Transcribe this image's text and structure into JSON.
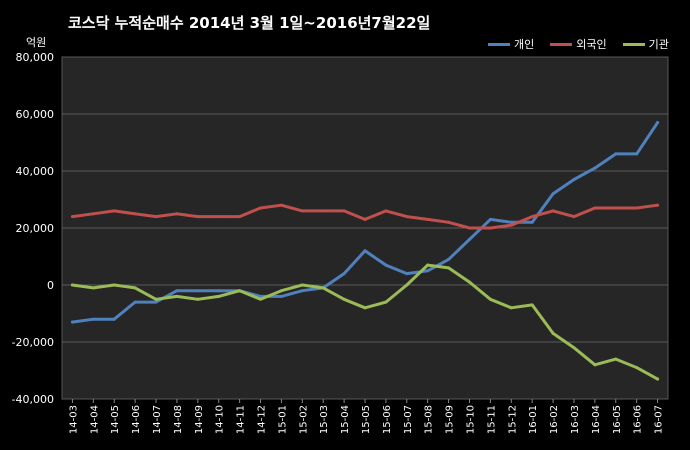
{
  "chart_data": {
    "type": "line",
    "title": "코스닥  누적순매수 2014년 3월 1일~2016년7월22일",
    "ylabel": "억원",
    "ylim": [
      -40000,
      80000
    ],
    "yticks": [
      "80,000",
      "60,000",
      "40,000",
      "20,000",
      "0",
      "-20,000",
      "-40,000"
    ],
    "ytick_values": [
      80000,
      60000,
      40000,
      20000,
      0,
      -20000,
      -40000
    ],
    "categories": [
      "14-03",
      "14-04",
      "14-05",
      "14-06",
      "14-07",
      "14-08",
      "14-09",
      "14-10",
      "14-11",
      "14-12",
      "15-01",
      "15-02",
      "15-03",
      "15-04",
      "15-05",
      "15-06",
      "15-07",
      "15-08",
      "15-09",
      "15-10",
      "15-11",
      "15-12",
      "16-01",
      "16-02",
      "16-03",
      "16-04",
      "16-05",
      "16-06",
      "16-07"
    ],
    "grid": true,
    "legend_position": "top-right",
    "series": [
      {
        "name": "개인",
        "color": "#4F81BD",
        "values": [
          -13000,
          -12000,
          -12000,
          -6000,
          -6000,
          -2000,
          -2000,
          -2000,
          -2000,
          -4000,
          -4000,
          -2000,
          -1000,
          4000,
          12000,
          7000,
          4000,
          5000,
          9000,
          16000,
          23000,
          22000,
          22000,
          32000,
          37000,
          41000,
          46000,
          46000,
          57000
        ]
      },
      {
        "name": "외국인",
        "color": "#C0504D",
        "values": [
          24000,
          25000,
          26000,
          25000,
          24000,
          25000,
          24000,
          24000,
          24000,
          27000,
          28000,
          26000,
          26000,
          26000,
          23000,
          26000,
          24000,
          23000,
          22000,
          20000,
          20000,
          21000,
          24000,
          26000,
          24000,
          27000,
          27000,
          27000,
          28000
        ]
      },
      {
        "name": "기관",
        "color": "#9BBB59",
        "values": [
          0,
          -1000,
          0,
          -1000,
          -5000,
          -4000,
          -5000,
          -4000,
          -2000,
          -5000,
          -2000,
          0,
          -1000,
          -5000,
          -8000,
          -6000,
          0,
          7000,
          6000,
          1000,
          -5000,
          -8000,
          -7000,
          -17000,
          -22000,
          -28000,
          -26000,
          -29000,
          -33000
        ]
      }
    ]
  }
}
